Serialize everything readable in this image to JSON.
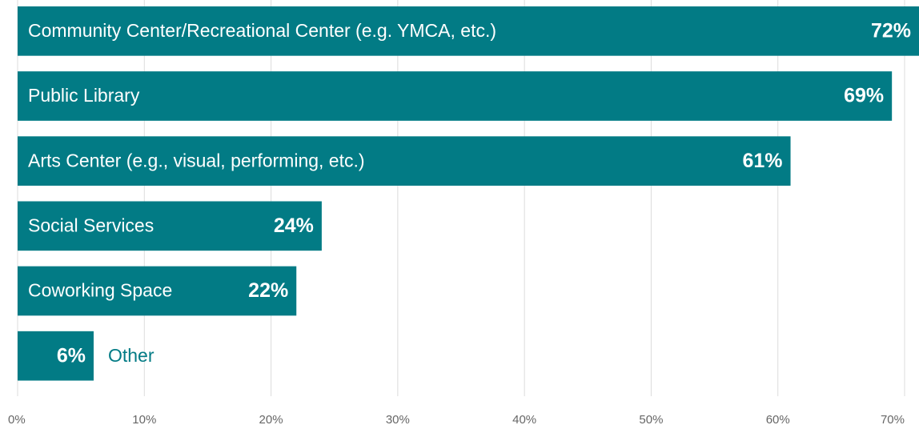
{
  "chart_data": {
    "type": "barh",
    "categories": [
      "Community Center/Recreational Center (e.g. YMCA, etc.)",
      "Public Library",
      "Arts Center (e.g., visual, performing, etc.)",
      "Social Services",
      "Coworking Space",
      "Other"
    ],
    "values": [
      72,
      69,
      61,
      24,
      22,
      6
    ],
    "value_labels": [
      "72%",
      "69%",
      "61%",
      "24%",
      "22%",
      "6%"
    ],
    "color": "#027b85",
    "xlim": [
      0,
      70
    ],
    "xticks": [
      {
        "value": 0,
        "label": "0%"
      },
      {
        "value": 10,
        "label": "10%"
      },
      {
        "value": 20,
        "label": "20%"
      },
      {
        "value": 30,
        "label": "30%"
      },
      {
        "value": 40,
        "label": "40%"
      },
      {
        "value": 50,
        "label": "50%"
      },
      {
        "value": 60,
        "label": "60%"
      },
      {
        "value": 70,
        "label": "70%"
      }
    ],
    "grid": true
  }
}
